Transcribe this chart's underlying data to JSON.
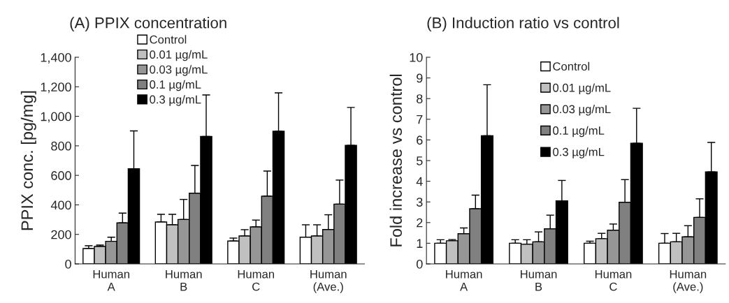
{
  "chart_data": [
    {
      "type": "bar",
      "title": "(A) PPIX concentration",
      "ylabel": "PPIX conc. [pg/mg]",
      "categories": [
        "Human\nA",
        "Human\nB",
        "Human\nC",
        "Human\n(Ave.)"
      ],
      "ylim": [
        0,
        1400
      ],
      "yticks": [
        0,
        200,
        400,
        600,
        800,
        {
          "value": 1000,
          "label": "1,000"
        },
        {
          "value": 1200,
          "label": "1,200"
        },
        {
          "value": 1400,
          "label": "1,400"
        }
      ],
      "legend": "top left",
      "series": [
        {
          "name": "Control",
          "color": "#ffffff",
          "values": [
            104,
            284,
            155,
            181
          ],
          "errors": [
            [
              104,
              123
            ],
            [
              284,
              336
            ],
            [
              155,
              175
            ],
            [
              181,
              265
            ]
          ]
        },
        {
          "name": "0.01 µg/mL",
          "color": "#c0c0c0",
          "values": [
            118,
            265,
            189,
            189
          ],
          "errors": [
            [
              118,
              128
            ],
            [
              265,
              336
            ],
            [
              189,
              232
            ],
            [
              189,
              265
            ]
          ]
        },
        {
          "name": "0.03 µg/mL",
          "color": "#969696",
          "values": [
            153,
            301,
            251,
            233
          ],
          "errors": [
            [
              153,
              181
            ],
            [
              301,
              437
            ],
            [
              251,
              297
            ],
            [
              233,
              333
            ]
          ]
        },
        {
          "name": "0.1 µg/mL",
          "color": "#808080",
          "values": [
            278,
            479,
            459,
            405
          ],
          "errors": [
            [
              278,
              344
            ],
            [
              479,
              667
            ],
            [
              459,
              629
            ],
            [
              405,
              568
            ]
          ]
        },
        {
          "name": "0.3 µg/mL",
          "color": "#000000",
          "values": [
            645,
            864,
            899,
            803
          ],
          "errors": [
            [
              645,
              901
            ],
            [
              864,
              1145
            ],
            [
              899,
              1159
            ],
            [
              803,
              1060
            ]
          ]
        }
      ]
    },
    {
      "type": "bar",
      "title": "(B) Induction ratio vs control",
      "ylabel": "Fold increase vs control",
      "categories": [
        "Human\nA",
        "Human\nB",
        "Human\nC",
        "Human\n(Ave.)"
      ],
      "ylim": [
        0,
        10
      ],
      "yticks": [
        0,
        1,
        2,
        3,
        4,
        5,
        6,
        7,
        8,
        9,
        10
      ],
      "legend": "top",
      "series": [
        {
          "name": "Control",
          "color": "#ffffff",
          "values": [
            1.0,
            1.0,
            1.0,
            1.0
          ],
          "errors": [
            [
              1.0,
              1.17
            ],
            [
              1.0,
              1.17
            ],
            [
              1.0,
              1.1
            ],
            [
              1.0,
              1.47
            ]
          ]
        },
        {
          "name": "0.01 µg/mL",
          "color": "#c0c0c0",
          "values": [
            1.12,
            0.95,
            1.22,
            1.07
          ],
          "errors": [
            [
              1.12,
              1.18
            ],
            [
              0.95,
              1.17
            ],
            [
              1.22,
              1.48
            ],
            [
              1.07,
              1.48
            ]
          ]
        },
        {
          "name": "0.03 µg/mL",
          "color": "#969696",
          "values": [
            1.46,
            1.07,
            1.63,
            1.31
          ],
          "errors": [
            [
              1.46,
              1.74
            ],
            [
              1.07,
              1.55
            ],
            [
              1.63,
              1.93
            ],
            [
              1.31,
              1.85
            ]
          ]
        },
        {
          "name": "0.1 µg/mL",
          "color": "#808080",
          "values": [
            2.67,
            1.7,
            2.98,
            2.25
          ],
          "errors": [
            [
              2.67,
              3.33
            ],
            [
              1.7,
              2.36
            ],
            [
              2.98,
              4.08
            ],
            [
              2.25,
              3.15
            ]
          ]
        },
        {
          "name": "0.3 µg/mL",
          "color": "#000000",
          "values": [
            6.2,
            3.05,
            5.84,
            4.45
          ],
          "errors": [
            [
              6.2,
              8.67
            ],
            [
              3.05,
              4.04
            ],
            [
              5.84,
              7.53
            ],
            [
              4.45,
              5.88
            ]
          ]
        }
      ]
    }
  ]
}
